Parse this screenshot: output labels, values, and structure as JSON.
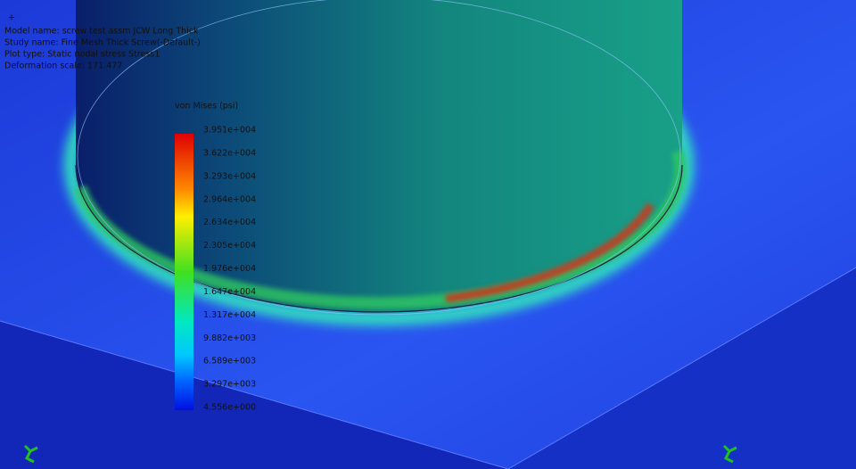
{
  "info": {
    "lines": [
      "Model name: screw test assm JCW Long Thick",
      "Study name: Fine Mesh Thick Screw(-Default-)",
      "Plot type: Static nodal stress Stress1",
      "Deformation scale: 171.477"
    ]
  },
  "legend": {
    "title": "von Mises (psi)",
    "labels": [
      "3.951e+004",
      "3.622e+004",
      "3.293e+004",
      "2.964e+004",
      "2.634e+004",
      "2.305e+004",
      "1.976e+004",
      "1.647e+004",
      "1.317e+004",
      "9.882e+003",
      "6.589e+003",
      "3.297e+003",
      "4.556e+000"
    ]
  }
}
